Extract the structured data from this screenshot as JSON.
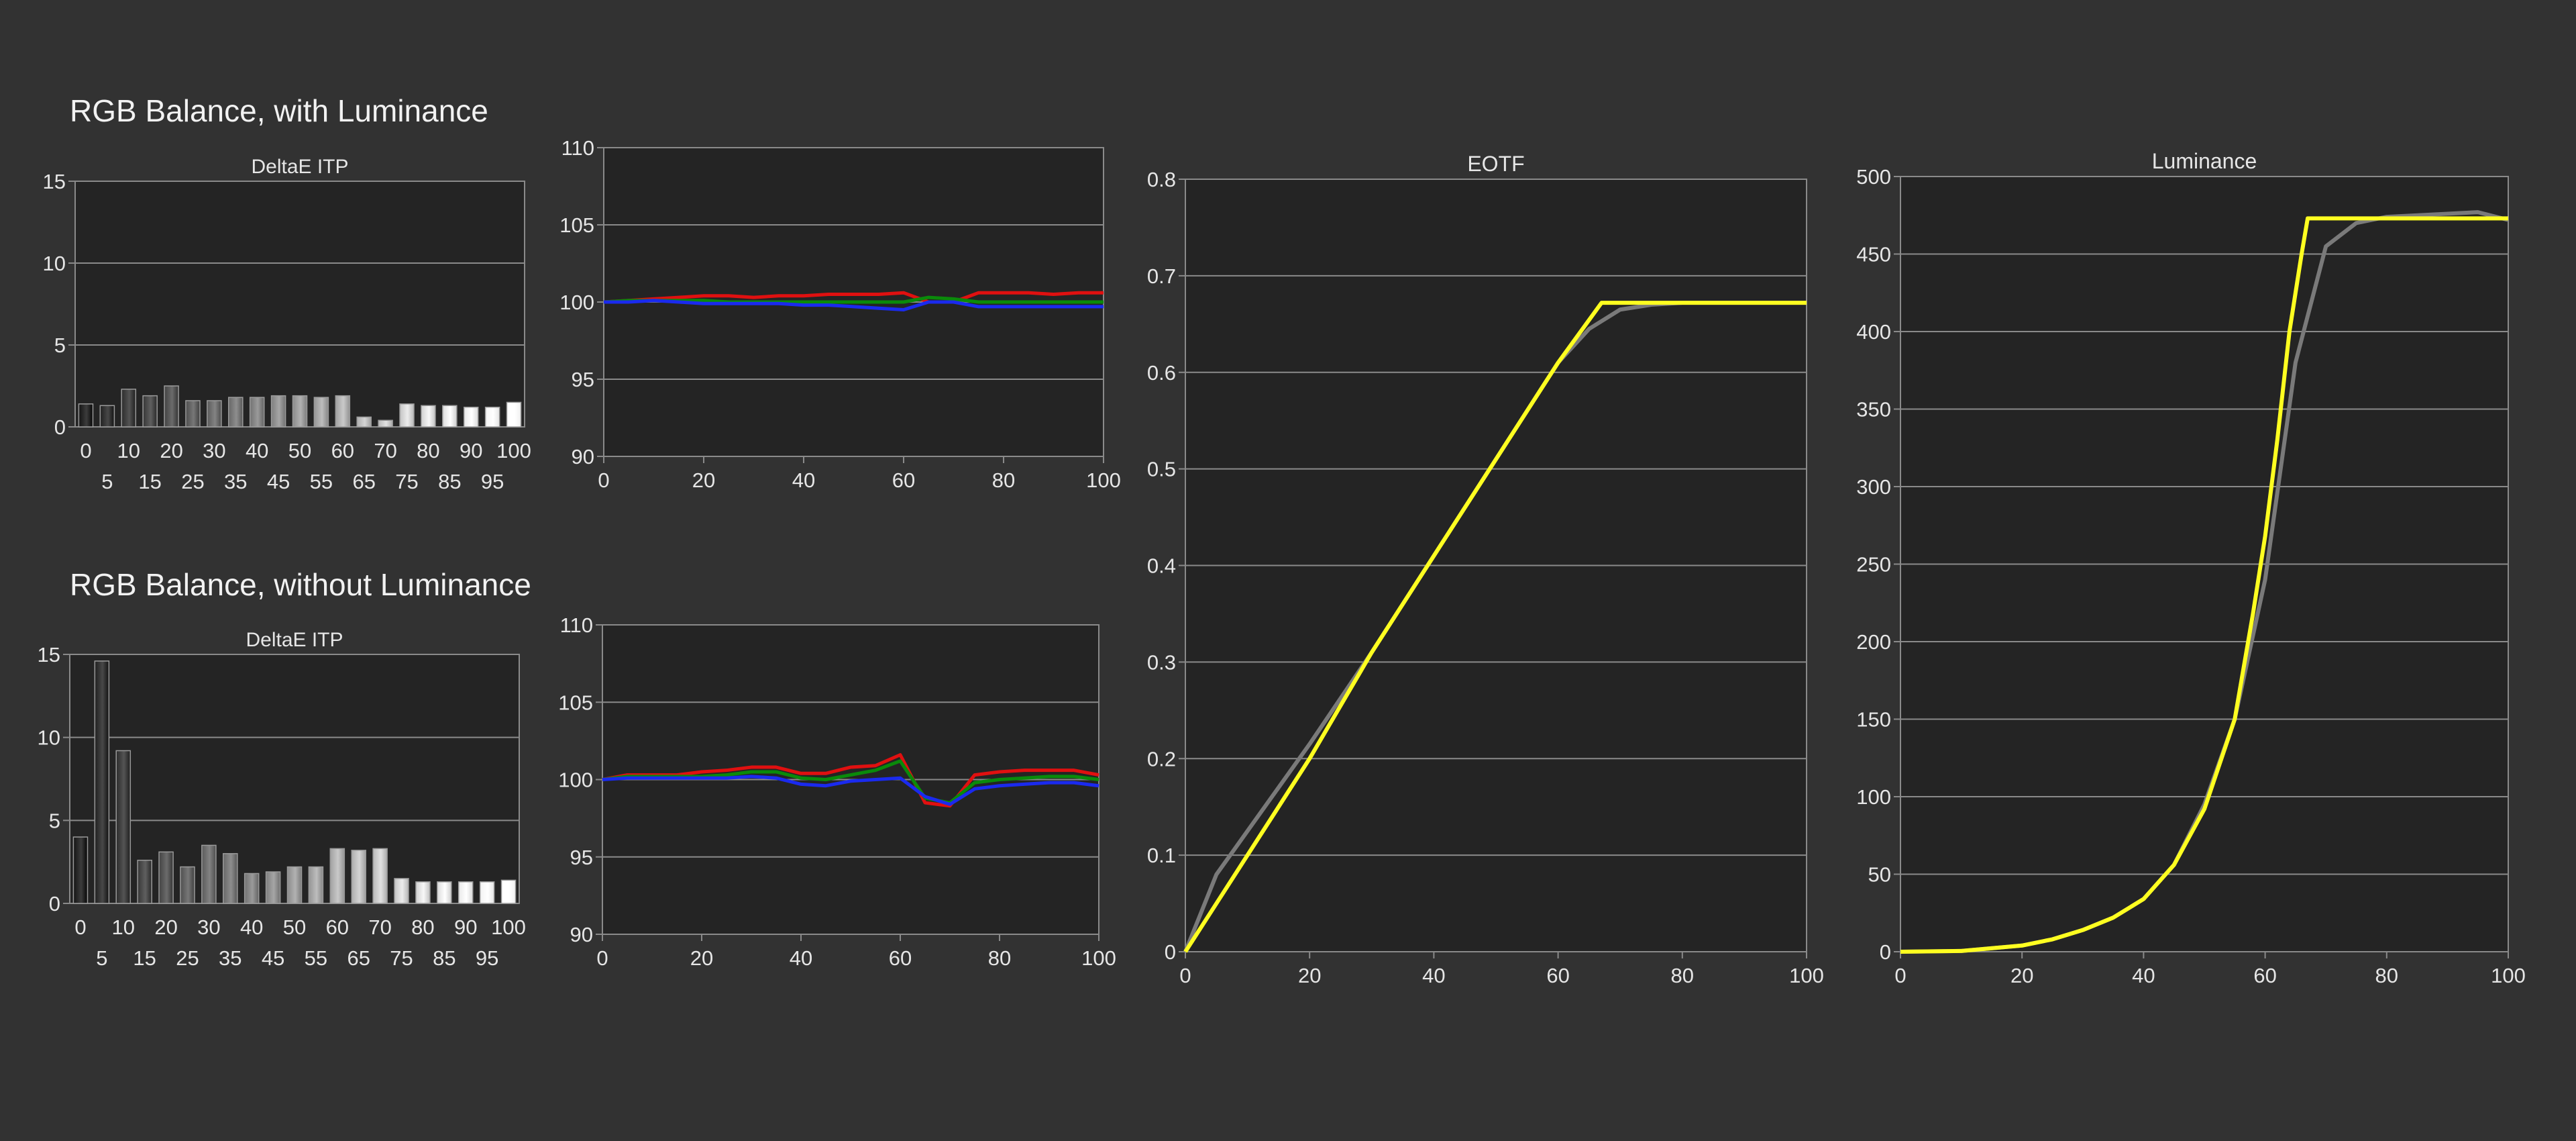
{
  "colors": {
    "background": "#323232",
    "plot_background": "#242424",
    "grid": "#8a8a8a",
    "axis_text": "#e6e6e6",
    "red": "#e01010",
    "green": "#0a8a0a",
    "blue": "#1a2aee",
    "target": "#7a7a7a",
    "measured": "#ffff20"
  },
  "sections": {
    "with_luminance": {
      "title": "RGB Balance, with Luminance"
    },
    "without_luminance": {
      "title": "RGB Balance, without Luminance"
    }
  },
  "chart_data": [
    {
      "id": "deltae-with",
      "type": "bar",
      "title": "DeltaE ITP",
      "categories": [
        "0",
        "5",
        "10",
        "15",
        "20",
        "25",
        "30",
        "35",
        "40",
        "45",
        "50",
        "55",
        "60",
        "65",
        "70",
        "75",
        "80",
        "85",
        "90",
        "95",
        "100"
      ],
      "values": [
        1.4,
        1.3,
        2.3,
        1.9,
        2.5,
        1.6,
        1.6,
        1.8,
        1.8,
        1.9,
        1.9,
        1.8,
        1.9,
        0.6,
        0.4,
        1.4,
        1.3,
        1.3,
        1.2,
        1.2,
        1.5
      ],
      "ylim": [
        0,
        15
      ],
      "yticks": [
        0,
        5,
        10,
        15
      ],
      "xticks_top": [
        "0",
        "10",
        "20",
        "30",
        "40",
        "50",
        "60",
        "70",
        "80",
        "90",
        "100"
      ],
      "xticks_bottom": [
        "5",
        "15",
        "25",
        "35",
        "45",
        "55",
        "65",
        "75",
        "85",
        "95"
      ],
      "grid": true
    },
    {
      "id": "rgb-with",
      "type": "line",
      "title": "",
      "xlim": [
        0,
        100
      ],
      "ylim": [
        90,
        110
      ],
      "xticks": [
        "0",
        "20",
        "40",
        "60",
        "80",
        "100"
      ],
      "yticks": [
        "90",
        "95",
        "100",
        "105",
        "110"
      ],
      "grid": true,
      "x": [
        0,
        5,
        10,
        15,
        20,
        25,
        30,
        35,
        40,
        45,
        50,
        55,
        60,
        65,
        70,
        75,
        80,
        85,
        90,
        95,
        100
      ],
      "series": [
        {
          "color": "red",
          "values": [
            100,
            100.1,
            100.2,
            100.3,
            100.4,
            100.4,
            100.3,
            100.4,
            100.4,
            100.5,
            100.5,
            100.5,
            100.6,
            100,
            100,
            100.6,
            100.6,
            100.6,
            100.5,
            100.6,
            100.6
          ]
        },
        {
          "color": "green",
          "values": [
            100,
            100.1,
            100.1,
            100.1,
            100.1,
            100,
            100,
            100,
            100,
            100,
            100,
            100,
            100,
            100.3,
            100.2,
            100,
            100,
            100,
            100,
            100,
            100
          ]
        },
        {
          "color": "blue",
          "values": [
            100,
            100,
            100.1,
            100,
            99.9,
            99.9,
            99.9,
            99.9,
            99.8,
            99.8,
            99.7,
            99.6,
            99.5,
            100,
            100,
            99.7,
            99.7,
            99.7,
            99.7,
            99.7,
            99.7
          ]
        }
      ]
    },
    {
      "id": "deltae-without",
      "type": "bar",
      "title": "DeltaE ITP",
      "categories": [
        "0",
        "5",
        "10",
        "15",
        "20",
        "25",
        "30",
        "35",
        "40",
        "45",
        "50",
        "55",
        "60",
        "65",
        "70",
        "75",
        "80",
        "85",
        "90",
        "95",
        "100"
      ],
      "values": [
        4.0,
        14.6,
        9.2,
        2.6,
        3.1,
        2.2,
        3.5,
        3.0,
        1.8,
        1.9,
        2.2,
        2.2,
        3.3,
        3.2,
        3.3,
        1.5,
        1.3,
        1.3,
        1.3,
        1.3,
        1.4
      ],
      "ylim": [
        0,
        15
      ],
      "yticks": [
        0,
        5,
        10,
        15
      ],
      "xticks_top": [
        "0",
        "10",
        "20",
        "30",
        "40",
        "50",
        "60",
        "70",
        "80",
        "90",
        "100"
      ],
      "xticks_bottom": [
        "5",
        "15",
        "25",
        "35",
        "45",
        "55",
        "65",
        "75",
        "85",
        "95"
      ],
      "grid": true
    },
    {
      "id": "rgb-without",
      "type": "line",
      "title": "",
      "xlim": [
        0,
        100
      ],
      "ylim": [
        90,
        110
      ],
      "xticks": [
        "0",
        "20",
        "40",
        "60",
        "80",
        "100"
      ],
      "yticks": [
        "90",
        "95",
        "100",
        "105",
        "110"
      ],
      "grid": true,
      "x": [
        0,
        5,
        10,
        15,
        20,
        25,
        30,
        35,
        40,
        45,
        50,
        55,
        60,
        65,
        70,
        75,
        80,
        85,
        90,
        95,
        100
      ],
      "series": [
        {
          "color": "red",
          "values": [
            100,
            100.3,
            100.3,
            100.3,
            100.5,
            100.6,
            100.8,
            100.8,
            100.4,
            100.4,
            100.8,
            100.9,
            101.6,
            98.5,
            98.3,
            100.3,
            100.5,
            100.6,
            100.6,
            100.6,
            100.3
          ]
        },
        {
          "color": "green",
          "values": [
            100,
            100.2,
            100.2,
            100.2,
            100.2,
            100.3,
            100.5,
            100.5,
            100.1,
            100,
            100.3,
            100.6,
            101.2,
            98.8,
            98.5,
            99.8,
            100,
            100.1,
            100.2,
            100.2,
            100
          ]
        },
        {
          "color": "blue",
          "values": [
            100,
            100.1,
            100.1,
            100.1,
            100.1,
            100.1,
            100.2,
            100.1,
            99.7,
            99.6,
            99.9,
            100,
            100.1,
            98.9,
            98.4,
            99.4,
            99.6,
            99.7,
            99.8,
            99.8,
            99.6
          ]
        }
      ]
    },
    {
      "id": "eotf",
      "type": "line",
      "title": "EOTF",
      "xlim": [
        0,
        100
      ],
      "ylim": [
        0,
        0.8
      ],
      "xticks": [
        "0",
        "20",
        "40",
        "60",
        "80",
        "100"
      ],
      "yticks": [
        "0",
        "0.1",
        "0.2",
        "0.3",
        "0.4",
        "0.5",
        "0.6",
        "0.7",
        "0.8"
      ],
      "grid": true,
      "series": [
        {
          "color": "target",
          "x": [
            0,
            5,
            10,
            20,
            30,
            40,
            50,
            60,
            65,
            70,
            75,
            80,
            90,
            100
          ],
          "values": [
            0,
            0.08,
            0.125,
            0.215,
            0.31,
            0.41,
            0.51,
            0.61,
            0.645,
            0.665,
            0.67,
            0.672,
            0.672,
            0.672
          ]
        },
        {
          "color": "measured",
          "x": [
            0,
            5,
            10,
            20,
            30,
            40,
            50,
            60,
            67,
            70,
            80,
            90,
            100
          ],
          "values": [
            0,
            0.05,
            0.1,
            0.2,
            0.31,
            0.41,
            0.51,
            0.61,
            0.672,
            0.672,
            0.672,
            0.672,
            0.672
          ]
        }
      ]
    },
    {
      "id": "luminance",
      "type": "line",
      "title": "Luminance",
      "xlim": [
        0,
        100
      ],
      "ylim": [
        0,
        500
      ],
      "xticks": [
        "0",
        "20",
        "40",
        "60",
        "80",
        "100"
      ],
      "yticks": [
        "0",
        "50",
        "100",
        "150",
        "200",
        "250",
        "300",
        "350",
        "400",
        "450",
        "500"
      ],
      "grid": true,
      "series": [
        {
          "color": "target",
          "x": [
            0,
            10,
            20,
            25,
            30,
            35,
            40,
            45,
            50,
            55,
            60,
            65,
            70,
            75,
            80,
            90,
            95,
            100
          ],
          "values": [
            0,
            0.5,
            4,
            8,
            14,
            22,
            34,
            56,
            95,
            150,
            240,
            380,
            455,
            470,
            474,
            476,
            477,
            472
          ]
        },
        {
          "color": "measured",
          "x": [
            0,
            10,
            20,
            25,
            30,
            35,
            40,
            45,
            50,
            55,
            58,
            60,
            62,
            64,
            66,
            67,
            70,
            80,
            90,
            100
          ],
          "values": [
            0,
            0.5,
            4,
            8,
            14,
            22,
            34,
            56,
            92,
            150,
            218,
            268,
            330,
            400,
            450,
            473,
            473,
            473,
            473,
            473
          ]
        }
      ]
    }
  ]
}
